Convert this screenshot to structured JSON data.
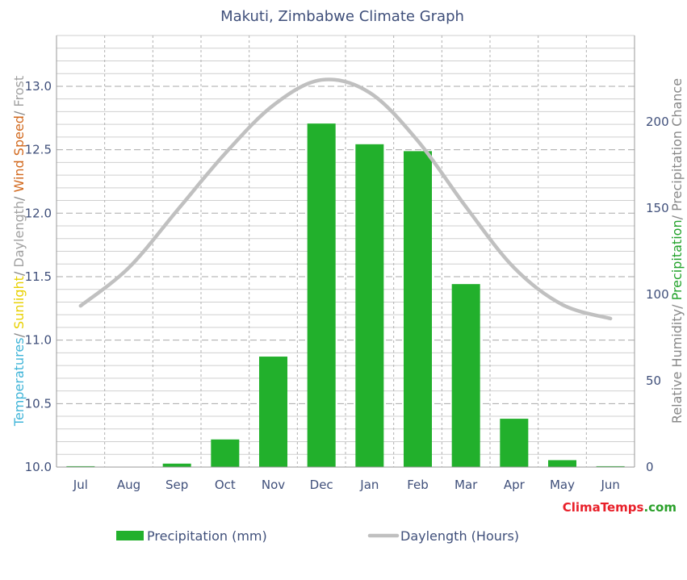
{
  "chart_data": {
    "type": "bar",
    "title": "Makuti, Zimbabwe Climate Graph",
    "categories": [
      "Jul",
      "Aug",
      "Sep",
      "Oct",
      "Nov",
      "Dec",
      "Jan",
      "Feb",
      "Mar",
      "Apr",
      "May",
      "Jun"
    ],
    "left_axis": {
      "label_parts": [
        {
          "text": "Temperatures",
          "color": "#3fb4d8"
        },
        {
          "text": "/",
          "color": "#888888"
        },
        {
          "text": " Sunlight",
          "color": "#e8d000"
        },
        {
          "text": "/ ",
          "color": "#888888"
        },
        {
          "text": "Daylength",
          "color": "#a0a0a0"
        },
        {
          "text": "/ ",
          "color": "#888888"
        },
        {
          "text": "Wind Speed",
          "color": "#d2691e"
        },
        {
          "text": "/ ",
          "color": "#888888"
        },
        {
          "text": "Frost",
          "color": "#a0a0a0"
        }
      ],
      "ylim": [
        10.0,
        13.4
      ],
      "ticks": [
        "10.0",
        "10.5",
        "11.0",
        "11.5",
        "12.0",
        "12.5",
        "13.0"
      ]
    },
    "right_axis": {
      "label_parts": [
        {
          "text": "Relative Humidity",
          "color": "#888888"
        },
        {
          "text": "/ ",
          "color": "#888888"
        },
        {
          "text": "Precipitation",
          "color": "#22a22a"
        },
        {
          "text": "/ Precipitation Chance",
          "color": "#888888"
        }
      ],
      "ylim": [
        0,
        250
      ],
      "ticks": [
        "0",
        "50",
        "100",
        "150",
        "200"
      ]
    },
    "series": [
      {
        "name": "Precipitation (mm)",
        "type": "bar",
        "axis": "right",
        "color": "#22b02c",
        "values": [
          0.5,
          0,
          2,
          16,
          64,
          199,
          187,
          183,
          106,
          28,
          4,
          0.5
        ]
      },
      {
        "name": "Daylength (Hours)",
        "type": "line",
        "axis": "left",
        "color": "#c0c0c0",
        "values": [
          11.27,
          11.57,
          12.02,
          12.47,
          12.85,
          13.05,
          12.95,
          12.57,
          12.05,
          11.57,
          11.28,
          11.17
        ]
      }
    ],
    "grid": true,
    "legend_position": "bottom"
  },
  "brand": {
    "parts": [
      {
        "text": "Clima",
        "color": "#e8202a"
      },
      {
        "text": "Temps",
        "color": "#e8202a"
      },
      {
        "text": ".com",
        "color": "#2aa02a"
      }
    ]
  }
}
